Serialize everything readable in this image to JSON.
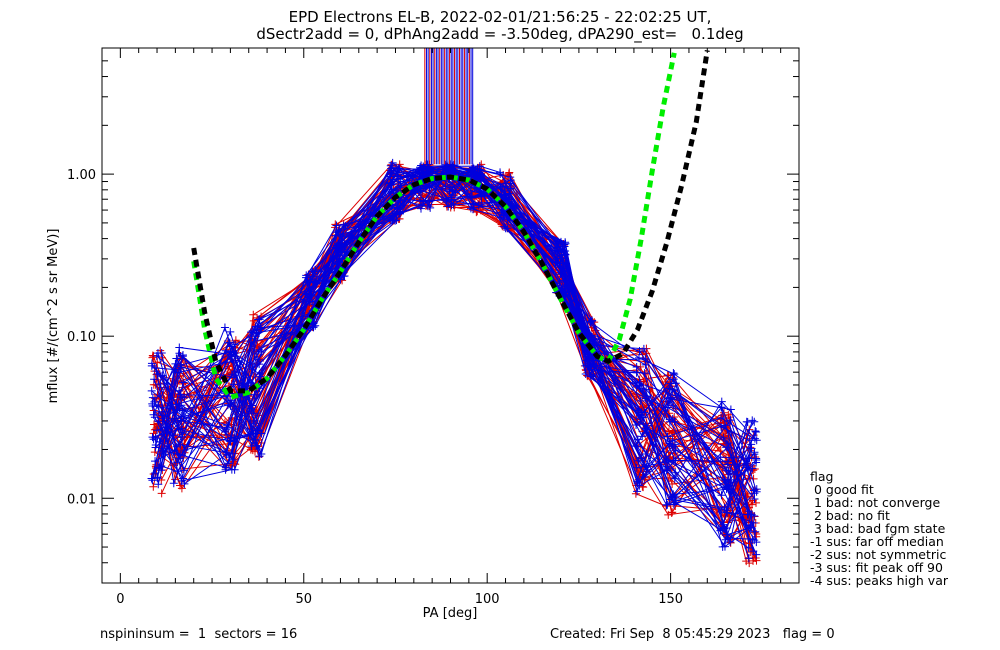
{
  "title_line1": "EPD Electrons EL-B, 2022-02-01/21:56:25 - 22:02:25 UT,",
  "title_line2": "dSectr2add = 0, dPhAng2add = -3.50deg, dPA290_est=   0.1deg",
  "footer": {
    "left": "nspininsum =  1  sectors = 16",
    "right": "Created: Fri Sep  8 05:45:29 2023   flag = 0"
  },
  "legend": {
    "title": "flag",
    "items": [
      " 0 good fit",
      " 1 bad: not converge",
      " 2 bad: no fit",
      " 3 bad: bad fgm state",
      "-1 sus: far off median",
      "-2 sus: not symmetric",
      "-3 sus: fit peak off 90",
      "-4 sus: peaks high var"
    ]
  },
  "colors": {
    "red_series": "#dd0000",
    "blue_series": "#0000dd",
    "fit_green": "#00ee00",
    "fit_black": "#000000"
  },
  "chart_data": {
    "type": "line",
    "xlabel": "PA [deg]",
    "ylabel": "mflux [#/(cm^2 s sr MeV)]",
    "xlim": [
      -5,
      185
    ],
    "ylim": [
      0.003,
      6.0
    ],
    "yscale": "log",
    "xticks": [
      0,
      50,
      100,
      150
    ],
    "xtick_labels": [
      "0",
      "50",
      "100",
      "150"
    ],
    "yticks": [
      0.01,
      0.1,
      1.0
    ],
    "ytick_labels": [
      "0.01",
      "0.10",
      "1.00"
    ],
    "grid": false,
    "legend_position": "right",
    "pa_bins": [
      10,
      16,
      30,
      37,
      52,
      60,
      75,
      83,
      90,
      97,
      105,
      120,
      128,
      142,
      150,
      165,
      172
    ],
    "profile_shape": [
      0.03,
      0.032,
      0.042,
      0.05,
      0.17,
      0.33,
      0.78,
      0.9,
      0.94,
      0.88,
      0.7,
      0.26,
      0.085,
      0.03,
      0.022,
      0.014,
      0.011
    ],
    "num_red_traces": 45,
    "num_blue_traces": 45,
    "fits": [
      {
        "name": "",
        "color": "#00ee00",
        "x": [
          20,
          23,
          26,
          30,
          35,
          40,
          45,
          50,
          55,
          60,
          65,
          70,
          75,
          80,
          85,
          90,
          95,
          100,
          105,
          110,
          115,
          120,
          125,
          130,
          133,
          136,
          139,
          142,
          145,
          148,
          151
        ],
        "y": [
          0.29,
          0.11,
          0.055,
          0.042,
          0.045,
          0.055,
          0.076,
          0.11,
          0.17,
          0.25,
          0.38,
          0.55,
          0.72,
          0.86,
          0.94,
          0.96,
          0.92,
          0.81,
          0.63,
          0.44,
          0.28,
          0.17,
          0.105,
          0.075,
          0.07,
          0.095,
          0.17,
          0.4,
          1.05,
          2.6,
          5.6
        ]
      },
      {
        "name": "",
        "color": "#000000",
        "x": [
          20,
          23,
          26,
          30,
          35,
          40,
          45,
          50,
          55,
          60,
          65,
          70,
          75,
          80,
          85,
          90,
          95,
          100,
          105,
          110,
          115,
          120,
          125,
          130,
          133,
          137,
          141,
          145,
          149,
          153,
          157,
          160
        ],
        "y": [
          0.35,
          0.14,
          0.07,
          0.046,
          0.046,
          0.055,
          0.076,
          0.11,
          0.17,
          0.25,
          0.38,
          0.55,
          0.72,
          0.86,
          0.94,
          0.96,
          0.92,
          0.81,
          0.63,
          0.44,
          0.28,
          0.17,
          0.105,
          0.075,
          0.07,
          0.078,
          0.11,
          0.19,
          0.38,
          0.85,
          2.1,
          5.8
        ]
      }
    ]
  }
}
